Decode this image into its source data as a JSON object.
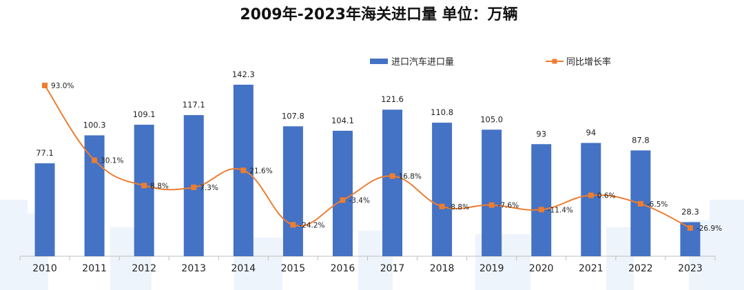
{
  "chart_data": {
    "type": "bar",
    "title": "2009年-2023年海关进口量  单位：万辆",
    "categories": [
      "2010",
      "2011",
      "2012",
      "2013",
      "2014",
      "2015",
      "2016",
      "2017",
      "2018",
      "2019",
      "2020",
      "2021",
      "2022",
      "2023"
    ],
    "series": [
      {
        "name": "进口汽车进口量",
        "type": "bar",
        "color": "#4472C4",
        "values": [
          77.1,
          100.3,
          109.1,
          117.1,
          142.3,
          107.8,
          104.1,
          121.6,
          110.8,
          105.0,
          93,
          94,
          87.8,
          28.3
        ],
        "labels": [
          "77.1",
          "100.3",
          "109.1",
          "117.1",
          "142.3",
          "107.8",
          "104.1",
          "121.6",
          "110.8",
          "105.0",
          "93",
          "94",
          "87.8",
          "28.3"
        ]
      },
      {
        "name": "同比增长率",
        "type": "line",
        "color": "#ED7D31",
        "values": [
          93.0,
          30.1,
          8.8,
          7.3,
          21.6,
          -24.2,
          -3.4,
          16.8,
          -8.8,
          -7.6,
          -11.4,
          0.6,
          -6.5,
          -26.9
        ],
        "labels": [
          "93.0%",
          "30.1%",
          "8.8%",
          "7.3%",
          "21.6%",
          "-24.2%",
          "-3.4%",
          "16.8%",
          "-8.8%",
          "-7.6%",
          "-11.4%",
          "0.6%",
          "-6.5%",
          "-26.9%"
        ]
      }
    ],
    "ylim": [
      0,
      160
    ],
    "y2lim": [
      -35,
      100
    ],
    "legend_position": "top-right",
    "grid": false
  }
}
